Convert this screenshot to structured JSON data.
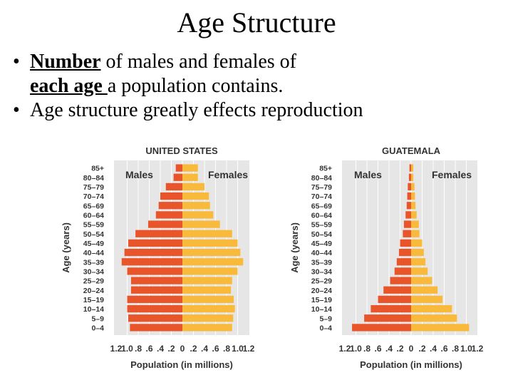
{
  "slide": {
    "title": "Age Structure",
    "bullets": [
      {
        "bold_underline": "Number",
        "rest_1": " of males and females of",
        "underline": "each age ",
        "rest_2": "a population contains."
      },
      {
        "text": "Age structure greatly effects reproduction"
      }
    ],
    "bullet_symbol": "•"
  },
  "colors": {
    "male": "#e8552a",
    "female": "#f9b93a",
    "panel": "#e6e6e6",
    "grid": "#ffffff"
  },
  "chart_data": [
    {
      "type": "population-pyramid",
      "title": "UNITED STATES",
      "categories": [
        "0–4",
        "5–9",
        "10–14",
        "15–19",
        "20–24",
        "25–29",
        "30–34",
        "35–39",
        "40–44",
        "45–49",
        "50–54",
        "55–59",
        "60–64",
        "65–69",
        "70–74",
        "75–79",
        "80–84",
        "85+"
      ],
      "series": [
        {
          "name": "Males",
          "values": [
            0.95,
            0.98,
            1.0,
            1.0,
            0.93,
            0.93,
            1.0,
            1.1,
            1.05,
            0.98,
            0.85,
            0.62,
            0.48,
            0.43,
            0.4,
            0.3,
            0.16,
            0.12
          ]
        },
        {
          "name": "Females",
          "values": [
            0.9,
            0.92,
            0.95,
            0.93,
            0.88,
            0.9,
            1.0,
            1.1,
            1.05,
            1.0,
            0.9,
            0.68,
            0.56,
            0.5,
            0.48,
            0.4,
            0.28,
            0.28
          ]
        }
      ],
      "xlabel": "Population (in millions)",
      "ylabel": "Age (years)",
      "xlim": [
        -1.2,
        1.2
      ],
      "x_tick_labels": [
        "1.2",
        "1.0",
        ".8",
        ".6",
        ".4",
        ".2",
        "0",
        ".2",
        ".4",
        ".6",
        ".8",
        "1.0",
        "1.2"
      ]
    },
    {
      "type": "population-pyramid",
      "title": "GUATEMALA",
      "categories": [
        "0–4",
        "5–9",
        "10–14",
        "15–19",
        "20–24",
        "25–29",
        "30–34",
        "35–39",
        "40–44",
        "45–49",
        "50–54",
        "55–59",
        "60–64",
        "65–69",
        "70–74",
        "75–79",
        "80–84",
        "85+"
      ],
      "series": [
        {
          "name": "Males",
          "values": [
            1.07,
            0.85,
            0.73,
            0.6,
            0.5,
            0.38,
            0.3,
            0.26,
            0.22,
            0.2,
            0.15,
            0.13,
            0.1,
            0.08,
            0.07,
            0.06,
            0.04,
            0.03
          ]
        },
        {
          "name": "Females",
          "values": [
            1.05,
            0.83,
            0.74,
            0.57,
            0.48,
            0.38,
            0.3,
            0.26,
            0.23,
            0.2,
            0.15,
            0.14,
            0.1,
            0.08,
            0.07,
            0.06,
            0.04,
            0.04
          ]
        }
      ],
      "xlabel": "Population (in millions)",
      "ylabel": "Age (years)",
      "xlim": [
        -1.2,
        1.2
      ],
      "x_tick_labels": [
        "1.2",
        "1.0",
        ".8",
        ".6",
        ".4",
        ".2",
        "0",
        ".2",
        ".4",
        ".6",
        ".8",
        "1.0",
        "1.2"
      ]
    }
  ]
}
